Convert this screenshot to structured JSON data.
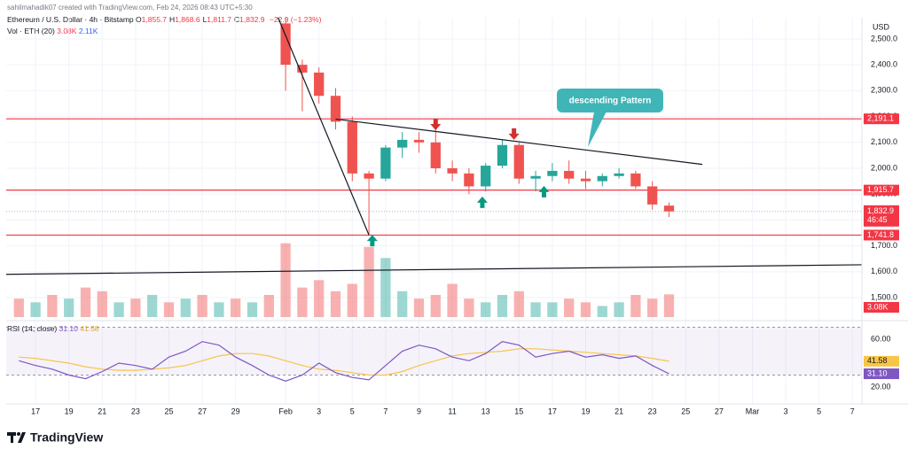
{
  "chart_data": {
    "type": "candlestick",
    "credit": "sahilmahadik07 created with TradingView.com, Feb 24, 2026 08:43 UTC+5:30",
    "symbol": "Ethereum / U.S. Dollar · 4h · Bitstamp",
    "ohlc": [
      {
        "key": "O",
        "value": "1,855.7"
      },
      {
        "key": "H",
        "value": "1,868.6"
      },
      {
        "key": "L",
        "value": "1,811.7"
      },
      {
        "key": "C",
        "value": "1,832.9"
      }
    ],
    "change": "−22.9 (−1.23%)",
    "currency": "USD",
    "up_color": "#26a69a",
    "down_color": "#ef5350",
    "x": [
      32,
      33,
      34,
      35,
      36,
      37,
      38,
      39,
      40,
      41,
      42,
      43,
      44,
      45,
      46,
      47,
      48,
      49,
      50,
      51,
      52,
      53,
      54,
      55
    ],
    "open": [
      2560,
      2400,
      2370,
      2280,
      2180,
      1980,
      1960,
      2080,
      2110,
      2100,
      2000,
      1980,
      1930,
      2010,
      2090,
      1960,
      1970,
      1990,
      1960,
      1950,
      1970,
      1980,
      1930,
      1855.7
    ],
    "high": [
      2590,
      2420,
      2390,
      2310,
      2200,
      1990,
      2090,
      2140,
      2140,
      2150,
      2030,
      2000,
      2020,
      2110,
      2100,
      1990,
      2020,
      2030,
      1990,
      1980,
      2000,
      1990,
      1950,
      1868.6
    ],
    "low": [
      2300,
      2220,
      2250,
      2150,
      1950,
      1741.8,
      1950,
      2040,
      2060,
      1980,
      1950,
      1900,
      1910,
      2000,
      1940,
      1910,
      1950,
      1940,
      1920,
      1930,
      1960,
      1920,
      1840,
      1811.7
    ],
    "close": [
      2400,
      2370,
      2280,
      2180,
      1980,
      1960,
      2080,
      2110,
      2100,
      2000,
      1980,
      1930,
      2010,
      2090,
      1960,
      1970,
      1990,
      1960,
      1950,
      1970,
      1980,
      1930,
      1860,
      1832.9
    ],
    "xlim": [
      15.24,
      66.57
    ],
    "xticks": [
      {
        "value": 17,
        "label": "17"
      },
      {
        "value": 19,
        "label": "19"
      },
      {
        "value": 21,
        "label": "21"
      },
      {
        "value": 23,
        "label": "23"
      },
      {
        "value": 25,
        "label": "25"
      },
      {
        "value": 27,
        "label": "27"
      },
      {
        "value": 29,
        "label": "29"
      },
      {
        "value": 32,
        "label": "Feb"
      },
      {
        "value": 34,
        "label": "3"
      },
      {
        "value": 36,
        "label": "5"
      },
      {
        "value": 38,
        "label": "7"
      },
      {
        "value": 40,
        "label": "9"
      },
      {
        "value": 42,
        "label": "11"
      },
      {
        "value": 44,
        "label": "13"
      },
      {
        "value": 46,
        "label": "15"
      },
      {
        "value": 48,
        "label": "17"
      },
      {
        "value": 50,
        "label": "19"
      },
      {
        "value": 52,
        "label": "21"
      },
      {
        "value": 54,
        "label": "23"
      },
      {
        "value": 56,
        "label": "25"
      },
      {
        "value": 58,
        "label": "27"
      },
      {
        "value": 60,
        "label": "Mar"
      },
      {
        "value": 62,
        "label": "3"
      },
      {
        "value": 64,
        "label": "5"
      },
      {
        "value": 66,
        "label": "7"
      }
    ],
    "ylim": [
      1418,
      2582
    ],
    "yticks": [
      {
        "value": 2500,
        "label": "2,500.0"
      },
      {
        "value": 2400,
        "label": "2,400.0"
      },
      {
        "value": 2300,
        "label": "2,300.0"
      },
      {
        "value": 2200,
        "label": "2,200.0"
      },
      {
        "value": 2100,
        "label": "2,100.0"
      },
      {
        "value": 2000,
        "label": "2,000.0"
      },
      {
        "value": 1900,
        "label": "1,900.0"
      },
      {
        "value": 1800,
        "label": "1,800.0"
      },
      {
        "value": 1700,
        "label": "1,700.0"
      },
      {
        "value": 1600,
        "label": "1,600.0"
      },
      {
        "value": 1500,
        "label": "1,500.0"
      }
    ],
    "price_lines": [
      {
        "value": 2191.1,
        "label": "2,191.1"
      },
      {
        "value": 1915.7,
        "label": "1,915.7"
      },
      {
        "value": 1741.8,
        "label": "1,741.8"
      }
    ],
    "price_line_color": "#f23645",
    "last_price": {
      "value": 1832.9,
      "label": "1,832.9",
      "countdown": "46:45"
    },
    "trendlines": [
      {
        "x": [
          31.5,
          37
        ],
        "y": [
          2590,
          1741.8
        ]
      },
      {
        "x": [
          35,
          57
        ],
        "y": [
          2190,
          2015
        ]
      },
      {
        "x": [
          15.24,
          66.57
        ],
        "y": [
          1590,
          1627
        ]
      }
    ],
    "annotation": "descending Pattern",
    "annotation_color": "#3fb5b8",
    "signals": [
      {
        "x": 37.2,
        "y": 1743,
        "direction": "up"
      },
      {
        "x": 43.8,
        "y": 1891,
        "direction": "up"
      },
      {
        "x": 47.5,
        "y": 1932,
        "direction": "up"
      },
      {
        "x": 41.0,
        "y": 2147,
        "direction": "down"
      },
      {
        "x": 45.7,
        "y": 2110,
        "direction": "down"
      }
    ],
    "volume": {
      "title": "Vol · ETH (20)",
      "last_label": "3.08K",
      "ma_label": "2.11K",
      "ylim": [
        0,
        12
      ],
      "x": [
        16,
        17,
        18,
        19,
        20,
        21,
        22,
        23,
        24,
        25,
        26,
        27,
        28,
        29,
        30,
        31,
        32,
        33,
        34,
        35,
        36,
        37,
        38,
        39,
        40,
        41,
        42,
        43,
        44,
        45,
        46,
        47,
        48,
        49,
        50,
        51,
        52,
        53,
        54,
        55
      ],
      "values": [
        2.5,
        2,
        3,
        2.5,
        4,
        3.5,
        2,
        2.5,
        3,
        2,
        2.5,
        3,
        2,
        2.5,
        2,
        3,
        10,
        4,
        5,
        3.5,
        4.5,
        9.5,
        8,
        3.5,
        2.5,
        3,
        4.5,
        2.5,
        2,
        3,
        3.5,
        2,
        2,
        2.5,
        2,
        1.5,
        2,
        3,
        2.5,
        3.08
      ],
      "up": [
        false,
        true,
        false,
        true,
        false,
        false,
        true,
        false,
        true,
        false,
        true,
        false,
        true,
        false,
        true,
        false,
        false,
        false,
        false,
        false,
        false,
        false,
        true,
        true,
        false,
        false,
        false,
        false,
        true,
        true,
        false,
        true,
        true,
        false,
        false,
        true,
        true,
        false,
        false,
        false
      ]
    },
    "rsi": {
      "title": "RSI (14, close)",
      "color": "#7e57c2",
      "ma_color": "#f7c548",
      "value_label": "31.10",
      "ma_label": "41.58",
      "band": [
        30,
        70
      ],
      "ylim": [
        6.7,
        73.3
      ],
      "yticks": [
        {
          "value": 60,
          "label": "60.00"
        },
        {
          "value": 20,
          "label": "20.00"
        }
      ],
      "x": [
        16,
        17,
        18,
        19,
        20,
        21,
        22,
        23,
        24,
        25,
        26,
        27,
        28,
        29,
        30,
        31,
        32,
        33,
        34,
        35,
        36,
        37,
        38,
        39,
        40,
        41,
        42,
        43,
        44,
        45,
        46,
        47,
        48,
        49,
        50,
        51,
        52,
        53,
        54,
        55
      ],
      "values": [
        42,
        38,
        35,
        30,
        27,
        33,
        40,
        38,
        35,
        45,
        50,
        58,
        55,
        45,
        38,
        30,
        25,
        30,
        40,
        32,
        28,
        26,
        38,
        50,
        55,
        52,
        45,
        42,
        48,
        58,
        55,
        45,
        48,
        50,
        45,
        47,
        44,
        46,
        38,
        31.1
      ],
      "ma": [
        45,
        44,
        42,
        40,
        37,
        35,
        34,
        34,
        35,
        36,
        38,
        42,
        46,
        48,
        48,
        46,
        42,
        38,
        35,
        34,
        32,
        30,
        30,
        33,
        38,
        42,
        46,
        48,
        49,
        50,
        52,
        52,
        51,
        50,
        49,
        48,
        47,
        46,
        44,
        41.58
      ]
    },
    "brand": "TradingView"
  }
}
